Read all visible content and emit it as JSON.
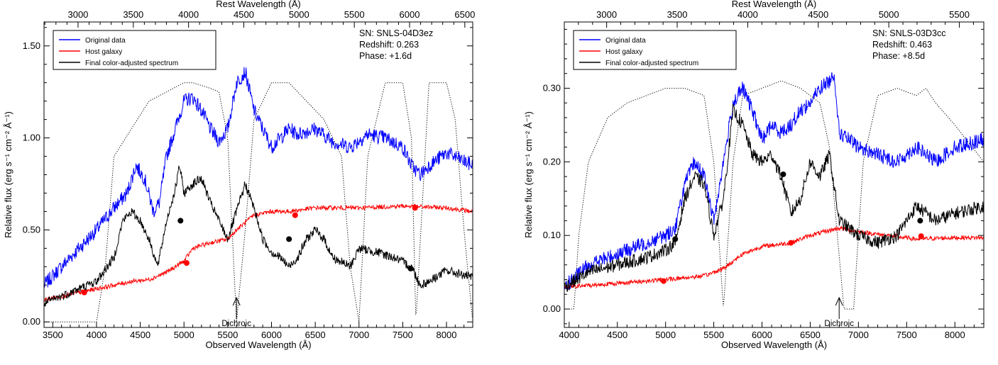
{
  "chart_data": [
    {
      "type": "line",
      "xlabel": "Observed Wavelength (Å)",
      "ylabel": "Relative flux (erg s⁻¹ cm⁻² Å⁻¹)",
      "top_xlabel": "Rest Wavelength (Å)",
      "xlim": [
        3400,
        8300
      ],
      "ylim": [
        -0.03,
        1.63
      ],
      "xticks": [
        3500,
        4000,
        4500,
        5000,
        5500,
        6000,
        6500,
        7000,
        7500,
        8000
      ],
      "yticks": [
        0.0,
        0.5,
        1.0,
        1.5
      ],
      "ytick_labels": [
        "0.00",
        "0.50",
        "1.00",
        "1.50"
      ],
      "top_ticks": [
        3000,
        3500,
        4000,
        4500,
        5000,
        5500,
        6000,
        6500
      ],
      "redshift_value": 0.263,
      "info": [
        "SN: SNLS-04D3ez",
        "Redshift: 0.263",
        "Phase: +1.6d"
      ],
      "annotation": "Dichroic",
      "annotation_x": 5600,
      "legend_position": "top-left",
      "series": [
        {
          "name": "Original data",
          "color": "#0000ff",
          "noise": 0.04,
          "x": [
            3400,
            3600,
            3800,
            4000,
            4200,
            4350,
            4450,
            4550,
            4650,
            4720,
            4800,
            4900,
            5000,
            5100,
            5200,
            5300,
            5400,
            5500,
            5600,
            5700,
            5800,
            5900,
            6000,
            6100,
            6200,
            6300,
            6500,
            6700,
            6900,
            7100,
            7300,
            7500,
            7600,
            7700,
            7800,
            8000,
            8300
          ],
          "values": [
            0.2,
            0.3,
            0.4,
            0.5,
            0.62,
            0.7,
            0.85,
            0.78,
            0.6,
            0.65,
            0.9,
            1.05,
            1.2,
            1.22,
            1.15,
            1.05,
            0.98,
            1.05,
            1.3,
            1.36,
            1.15,
            1.05,
            0.95,
            1.0,
            1.05,
            1.02,
            1.05,
            0.98,
            0.95,
            1.02,
            1.0,
            0.95,
            0.85,
            0.8,
            0.85,
            0.92,
            0.85
          ]
        },
        {
          "name": "Host galaxy",
          "color": "#ff0000",
          "noise": 0.012,
          "x": [
            3400,
            3800,
            4000,
            4200,
            4400,
            4600,
            4800,
            4900,
            5000,
            5100,
            5300,
            5500,
            5600,
            5800,
            6000,
            6200,
            6500,
            7000,
            7500,
            8000,
            8300
          ],
          "values": [
            0.12,
            0.16,
            0.18,
            0.2,
            0.22,
            0.23,
            0.27,
            0.3,
            0.33,
            0.4,
            0.43,
            0.45,
            0.5,
            0.58,
            0.6,
            0.6,
            0.62,
            0.62,
            0.63,
            0.62,
            0.6
          ]
        },
        {
          "name": "Final color-adjusted spectrum",
          "color": "#000000",
          "noise": 0.025,
          "x": [
            3400,
            3600,
            3800,
            4000,
            4200,
            4300,
            4400,
            4500,
            4600,
            4700,
            4800,
            4900,
            4950,
            5000,
            5100,
            5200,
            5300,
            5400,
            5500,
            5600,
            5700,
            5800,
            5900,
            6000,
            6100,
            6200,
            6300,
            6400,
            6500,
            6600,
            6700,
            6900,
            7000,
            7200,
            7400,
            7600,
            7700,
            7800,
            8000,
            8300
          ],
          "values": [
            0.1,
            0.14,
            0.18,
            0.22,
            0.35,
            0.55,
            0.6,
            0.55,
            0.45,
            0.3,
            0.55,
            0.72,
            0.85,
            0.7,
            0.75,
            0.78,
            0.65,
            0.55,
            0.45,
            0.6,
            0.75,
            0.62,
            0.45,
            0.38,
            0.35,
            0.3,
            0.35,
            0.45,
            0.5,
            0.45,
            0.35,
            0.3,
            0.4,
            0.38,
            0.35,
            0.3,
            0.2,
            0.22,
            0.28,
            0.24
          ]
        },
        {
          "name": "Filter bandpasses",
          "color": "#000000",
          "dotted": true,
          "x": [
            4000,
            4100,
            4200,
            4400,
            4600,
            4800,
            5000,
            5100,
            5300,
            5400,
            5500,
            5600,
            5700,
            5800,
            6000,
            6200,
            6400,
            6600,
            6800,
            6900,
            7000,
            7100,
            7300,
            7500,
            7600,
            7650,
            7800,
            8000,
            8100,
            8200,
            8300
          ],
          "values": [
            0.0,
            0.3,
            0.9,
            1.05,
            1.2,
            1.25,
            1.3,
            1.3,
            1.27,
            1.25,
            1.0,
            0.0,
            0.5,
            1.1,
            1.3,
            1.3,
            1.2,
            1.1,
            0.9,
            0.3,
            0.0,
            0.9,
            1.3,
            1.3,
            1.0,
            0.0,
            1.3,
            1.3,
            1.1,
            0.5,
            0.0
          ]
        }
      ],
      "markers": [
        {
          "color": "#ff0000",
          "x": [
            3860,
            5030,
            6270,
            7640
          ],
          "values": [
            0.16,
            0.32,
            0.58,
            0.62
          ]
        },
        {
          "color": "#000000",
          "x": [
            4960,
            6200,
            7590
          ],
          "values": [
            0.55,
            0.45,
            0.29
          ]
        }
      ]
    },
    {
      "type": "line",
      "xlabel": "Observed Wavelength (Å)",
      "ylabel": "Relative flux (erg s⁻¹ cm⁻² Å⁻¹)",
      "top_xlabel": "Rest Wavelength (Å)",
      "xlim": [
        3950,
        8300
      ],
      "ylim": [
        -0.025,
        0.39
      ],
      "xticks": [
        4000,
        4500,
        5000,
        5500,
        6000,
        6500,
        7000,
        7500,
        8000
      ],
      "yticks": [
        0.0,
        0.1,
        0.2,
        0.3
      ],
      "ytick_labels": [
        "0.00",
        "0.10",
        "0.20",
        "0.30"
      ],
      "top_ticks": [
        3000,
        3500,
        4000,
        4500,
        5000,
        5500
      ],
      "redshift_value": 0.463,
      "info": [
        "SN: SNLS-03D3cc",
        "Redshift: 0.463",
        "Phase: +8.5d"
      ],
      "annotation": "Dichroic",
      "annotation_x": 6800,
      "legend_position": "top-left",
      "series": [
        {
          "name": "Original data",
          "color": "#0000ff",
          "noise": 0.01,
          "x": [
            3950,
            4200,
            4400,
            4600,
            4800,
            5000,
            5100,
            5200,
            5300,
            5400,
            5500,
            5600,
            5700,
            5800,
            5900,
            6000,
            6100,
            6200,
            6300,
            6400,
            6500,
            6600,
            6700,
            6750,
            6800,
            7000,
            7200,
            7400,
            7600,
            7800,
            8000,
            8300
          ],
          "values": [
            0.03,
            0.06,
            0.07,
            0.08,
            0.09,
            0.1,
            0.11,
            0.17,
            0.2,
            0.18,
            0.12,
            0.2,
            0.28,
            0.3,
            0.27,
            0.23,
            0.25,
            0.24,
            0.25,
            0.27,
            0.28,
            0.3,
            0.31,
            0.32,
            0.24,
            0.22,
            0.21,
            0.2,
            0.22,
            0.2,
            0.22,
            0.23
          ]
        },
        {
          "name": "Host galaxy",
          "color": "#ff0000",
          "noise": 0.003,
          "x": [
            3950,
            4200,
            4500,
            5000,
            5400,
            5600,
            5800,
            6000,
            6300,
            6500,
            6800,
            7000,
            7300,
            7600,
            8000,
            8300
          ],
          "values": [
            0.03,
            0.032,
            0.035,
            0.04,
            0.045,
            0.055,
            0.075,
            0.085,
            0.09,
            0.1,
            0.11,
            0.105,
            0.1,
            0.095,
            0.097,
            0.097
          ]
        },
        {
          "name": "Final color-adjusted spectrum",
          "color": "#000000",
          "noise": 0.009,
          "x": [
            3950,
            4200,
            4500,
            4800,
            5000,
            5100,
            5200,
            5300,
            5400,
            5500,
            5600,
            5700,
            5800,
            5900,
            6000,
            6100,
            6200,
            6300,
            6400,
            6500,
            6600,
            6700,
            6800,
            7000,
            7200,
            7400,
            7600,
            7800,
            8000,
            8300
          ],
          "values": [
            0.03,
            0.05,
            0.06,
            0.07,
            0.08,
            0.09,
            0.15,
            0.18,
            0.17,
            0.1,
            0.15,
            0.27,
            0.25,
            0.21,
            0.2,
            0.21,
            0.18,
            0.13,
            0.15,
            0.2,
            0.18,
            0.21,
            0.12,
            0.1,
            0.09,
            0.1,
            0.14,
            0.12,
            0.13,
            0.14
          ]
        },
        {
          "name": "Filter bandpasses",
          "color": "#000000",
          "dotted": true,
          "x": [
            4050,
            4100,
            4200,
            4400,
            4600,
            4800,
            5000,
            5200,
            5400,
            5500,
            5600,
            5700,
            5800,
            6000,
            6200,
            6400,
            6600,
            6700,
            6850,
            6950,
            7050,
            7200,
            7400,
            7600,
            7700,
            7800,
            8000,
            8300
          ],
          "values": [
            0.0,
            0.1,
            0.2,
            0.26,
            0.28,
            0.29,
            0.3,
            0.3,
            0.29,
            0.2,
            0.0,
            0.2,
            0.29,
            0.3,
            0.31,
            0.3,
            0.28,
            0.22,
            0.0,
            0.0,
            0.2,
            0.29,
            0.3,
            0.29,
            0.3,
            0.28,
            0.25,
            0.2
          ]
        }
      ],
      "markers": [
        {
          "color": "#ff0000",
          "x": [
            4980,
            6300,
            7650
          ],
          "values": [
            0.038,
            0.09,
            0.099
          ]
        },
        {
          "color": "#000000",
          "x": [
            5100,
            6220,
            7640
          ],
          "values": [
            0.095,
            0.183,
            0.12
          ]
        }
      ]
    }
  ]
}
